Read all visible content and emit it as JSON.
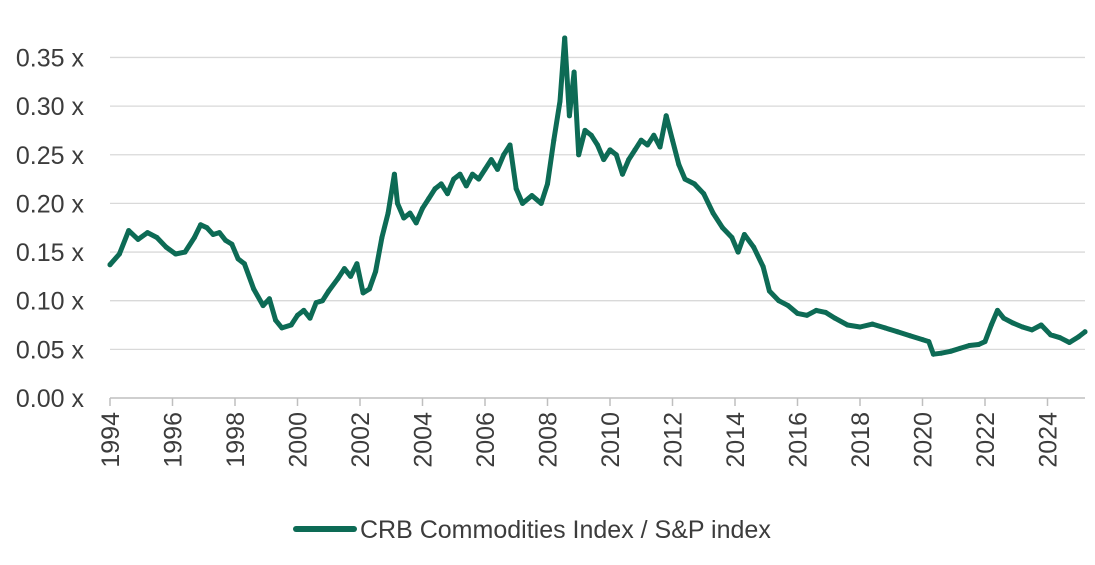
{
  "chart_data": {
    "type": "line",
    "title": "",
    "xlabel": "",
    "ylabel": "",
    "xlim": [
      1994,
      2025.2
    ],
    "ylim": [
      0,
      0.37
    ],
    "grid": true,
    "legend_position": "bottom-center",
    "color": "#0d6b55",
    "y_ticks": [
      {
        "value": 0.0,
        "label": "0.00 x"
      },
      {
        "value": 0.05,
        "label": "0.05 x"
      },
      {
        "value": 0.1,
        "label": "0.10 x"
      },
      {
        "value": 0.15,
        "label": "0.15 x"
      },
      {
        "value": 0.2,
        "label": "0.20 x"
      },
      {
        "value": 0.25,
        "label": "0.25 x"
      },
      {
        "value": 0.3,
        "label": "0.30 x"
      },
      {
        "value": 0.35,
        "label": "0.35 x"
      }
    ],
    "x_ticks": [
      {
        "value": 1994,
        "label": "1994"
      },
      {
        "value": 1996,
        "label": "1996"
      },
      {
        "value": 1998,
        "label": "1998"
      },
      {
        "value": 2000,
        "label": "2000"
      },
      {
        "value": 2002,
        "label": "2002"
      },
      {
        "value": 2004,
        "label": "2004"
      },
      {
        "value": 2006,
        "label": "2006"
      },
      {
        "value": 2008,
        "label": "2008"
      },
      {
        "value": 2010,
        "label": "2010"
      },
      {
        "value": 2012,
        "label": "2012"
      },
      {
        "value": 2014,
        "label": "2014"
      },
      {
        "value": 2016,
        "label": "2016"
      },
      {
        "value": 2018,
        "label": "2018"
      },
      {
        "value": 2020,
        "label": "2020"
      },
      {
        "value": 2022,
        "label": "2022"
      },
      {
        "value": 2024,
        "label": "2024"
      }
    ],
    "series": [
      {
        "name": "CRB Commodities Index / S&P index",
        "x": [
          1994.0,
          1994.3,
          1994.6,
          1994.9,
          1995.2,
          1995.5,
          1995.8,
          1996.1,
          1996.4,
          1996.7,
          1996.9,
          1997.1,
          1997.3,
          1997.5,
          1997.7,
          1997.9,
          1998.1,
          1998.3,
          1998.6,
          1998.9,
          1999.1,
          1999.3,
          1999.5,
          1999.8,
          2000.0,
          2000.2,
          2000.4,
          2000.6,
          2000.8,
          2001.0,
          2001.3,
          2001.5,
          2001.7,
          2001.9,
          2002.1,
          2002.3,
          2002.5,
          2002.7,
          2002.9,
          2003.1,
          2003.2,
          2003.4,
          2003.6,
          2003.8,
          2004.0,
          2004.2,
          2004.4,
          2004.6,
          2004.8,
          2005.0,
          2005.2,
          2005.4,
          2005.6,
          2005.8,
          2006.0,
          2006.2,
          2006.4,
          2006.6,
          2006.8,
          2007.0,
          2007.2,
          2007.5,
          2007.8,
          2008.0,
          2008.2,
          2008.4,
          2008.55,
          2008.7,
          2008.85,
          2009.0,
          2009.2,
          2009.4,
          2009.6,
          2009.8,
          2010.0,
          2010.2,
          2010.4,
          2010.6,
          2010.8,
          2011.0,
          2011.2,
          2011.4,
          2011.6,
          2011.8,
          2012.0,
          2012.2,
          2012.4,
          2012.7,
          2013.0,
          2013.3,
          2013.6,
          2013.9,
          2014.1,
          2014.3,
          2014.6,
          2014.9,
          2015.1,
          2015.4,
          2015.7,
          2016.0,
          2016.3,
          2016.6,
          2016.9,
          2017.2,
          2017.6,
          2018.0,
          2018.4,
          2018.8,
          2019.2,
          2019.6,
          2020.0,
          2020.2,
          2020.35,
          2020.6,
          2020.9,
          2021.2,
          2021.5,
          2021.8,
          2022.0,
          2022.2,
          2022.4,
          2022.6,
          2022.9,
          2023.2,
          2023.5,
          2023.8,
          2024.1,
          2024.4,
          2024.7,
          2025.0,
          2025.2
        ],
        "y": [
          0.137,
          0.148,
          0.172,
          0.163,
          0.17,
          0.165,
          0.155,
          0.148,
          0.15,
          0.165,
          0.178,
          0.175,
          0.168,
          0.17,
          0.162,
          0.158,
          0.143,
          0.138,
          0.112,
          0.095,
          0.102,
          0.08,
          0.072,
          0.075,
          0.085,
          0.09,
          0.082,
          0.098,
          0.1,
          0.11,
          0.123,
          0.133,
          0.125,
          0.138,
          0.108,
          0.112,
          0.13,
          0.165,
          0.19,
          0.23,
          0.2,
          0.185,
          0.19,
          0.18,
          0.195,
          0.205,
          0.215,
          0.22,
          0.21,
          0.225,
          0.23,
          0.218,
          0.23,
          0.225,
          0.235,
          0.245,
          0.235,
          0.25,
          0.26,
          0.215,
          0.2,
          0.208,
          0.2,
          0.22,
          0.265,
          0.305,
          0.37,
          0.29,
          0.335,
          0.25,
          0.275,
          0.27,
          0.26,
          0.245,
          0.255,
          0.25,
          0.23,
          0.245,
          0.255,
          0.265,
          0.26,
          0.27,
          0.258,
          0.29,
          0.265,
          0.24,
          0.225,
          0.22,
          0.21,
          0.19,
          0.175,
          0.165,
          0.15,
          0.168,
          0.155,
          0.135,
          0.11,
          0.1,
          0.095,
          0.087,
          0.085,
          0.09,
          0.088,
          0.082,
          0.075,
          0.073,
          0.076,
          0.072,
          0.068,
          0.064,
          0.06,
          0.058,
          0.045,
          0.046,
          0.048,
          0.051,
          0.054,
          0.055,
          0.058,
          0.075,
          0.09,
          0.082,
          0.077,
          0.073,
          0.07,
          0.075,
          0.065,
          0.062,
          0.057,
          0.063,
          0.068
        ]
      }
    ]
  }
}
